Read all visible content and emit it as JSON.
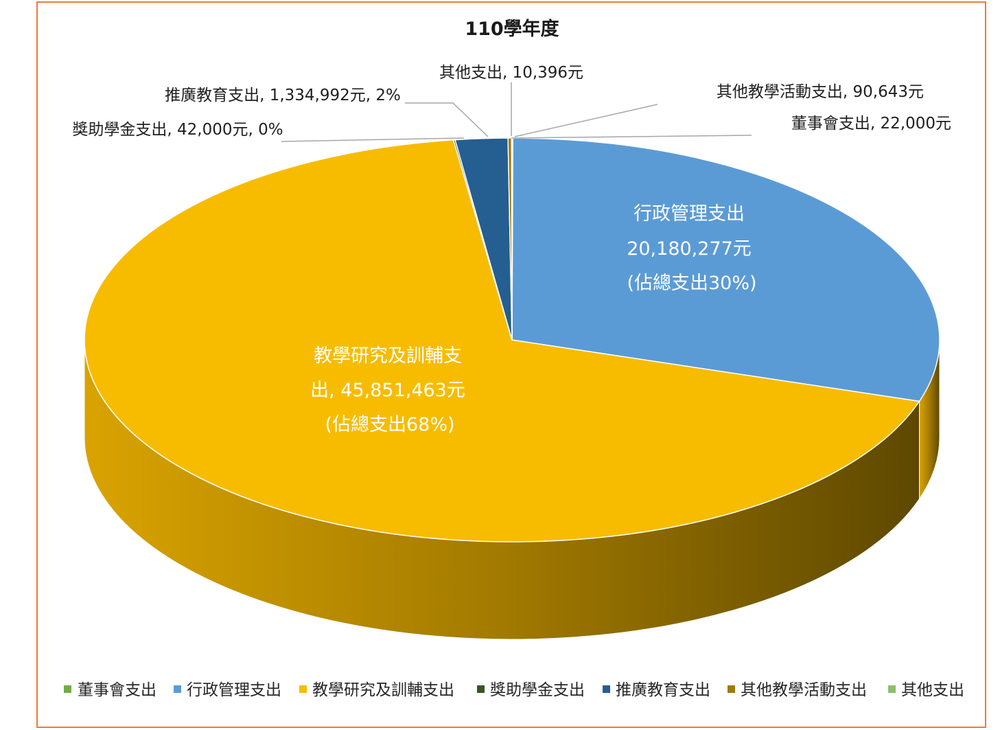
{
  "chart_data": {
    "type": "pie",
    "title": "110學年度",
    "unit": "元",
    "slices": [
      {
        "name": "董事會支出",
        "value": 22000,
        "color": "#70AD47"
      },
      {
        "name": "行政管理支出",
        "value": 20180277,
        "color": "#5B9BD5"
      },
      {
        "name": "教學研究及訓輔支出",
        "value": 45851463,
        "color": "#F7BC00"
      },
      {
        "name": "獎助學金支出",
        "value": 42000,
        "color": "#375623"
      },
      {
        "name": "推廣教育支出",
        "value": 1334992,
        "color": "#255E91"
      },
      {
        "name": "其他教學活動支出",
        "value": 90643,
        "color": "#9E7A0D"
      },
      {
        "name": "其他支出",
        "value": 10396,
        "color": "#8CC168"
      }
    ],
    "data_labels": {
      "admin": {
        "line1": "行政管理支出",
        "line2": "20,180,277元",
        "line3": "(佔總支出30%)"
      },
      "teaching": {
        "line1": "教學研究及訓輔支",
        "line2": "出, 45,851,463元",
        "line3": "(佔總支出68%)"
      },
      "other": "其他支出, 10,396元",
      "extension": "推廣教育支出, 1,334,992元, 2%",
      "other_teaching": "其他教學活動支出, 90,643元",
      "scholarship": "獎助學金支出, 42,000元, 0%",
      "board": "董事會支出, 22,000元"
    },
    "legend": {
      "position": "bottom",
      "entries": [
        "董事會支出",
        "行政管理支出",
        "教學研究及訓輔支出",
        "獎助學金支出",
        "推廣教育支出",
        "其他教學活動支出",
        "其他支出"
      ]
    }
  }
}
